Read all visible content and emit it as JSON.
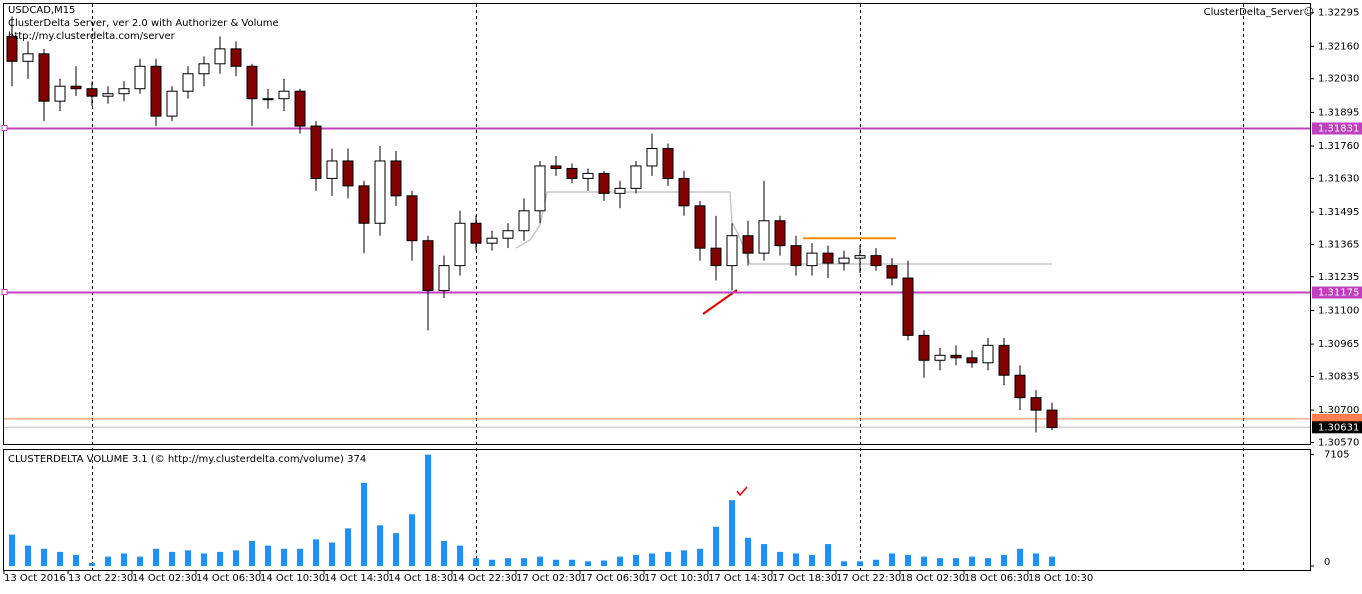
{
  "chart_data": [
    {
      "type": "candlestick",
      "title": "USDCAD,M15",
      "subtitle": "ClusterDelta Server, ver 2.0 with Authorizer & Volume",
      "source": "http://my.clusterdelta.com/server",
      "indicator_name": "ClusterDelta_Server☺",
      "categories": [
        "13 Oct 2016",
        null,
        null,
        null,
        "13 Oct 22:30",
        null,
        null,
        null,
        "14 Oct 02:30",
        null,
        null,
        null,
        "14 Oct 06:30",
        null,
        null,
        null,
        "14 Oct 10:30",
        null,
        null,
        null,
        "14 Oct 14:30",
        null,
        null,
        null,
        "14 Oct 18:30",
        null,
        null,
        null,
        "14 Oct 22:30",
        null,
        null,
        null,
        "17 Oct 02:30",
        null,
        null,
        null,
        "17 Oct 06:30",
        null,
        null,
        null,
        "17 Oct 10:30",
        null,
        null,
        null,
        "17 Oct 14:30",
        null,
        null,
        null,
        "17 Oct 18:30",
        null,
        null,
        null,
        "17 Oct 22:30",
        null,
        null,
        null,
        "18 Oct 02:30",
        null,
        null,
        null,
        "18 Oct 06:30",
        null,
        null,
        null,
        "18 Oct 10:30",
        null
      ],
      "open": [
        1.322,
        1.321,
        1.3213,
        1.3194,
        1.32,
        1.3199,
        1.3196,
        1.3197,
        1.3199,
        1.3208,
        1.3188,
        1.3198,
        1.3205,
        1.3209,
        1.3215,
        1.3208,
        1.3195,
        1.3195,
        1.3198,
        1.3184,
        1.3163,
        1.317,
        1.316,
        1.3145,
        1.317,
        1.3156,
        1.3138,
        1.3118,
        1.3128,
        1.3145,
        1.3137,
        1.3139,
        1.3142,
        1.315,
        1.3168,
        1.3167,
        1.3163,
        1.3165,
        1.3157,
        1.3159,
        1.3168,
        1.3175,
        1.3163,
        1.3152,
        1.3135,
        1.3128,
        1.314,
        1.3133,
        1.3146,
        1.3136,
        1.3128,
        1.3133,
        1.3129,
        1.3131,
        1.3132,
        1.3128,
        1.3123,
        1.31,
        1.309,
        1.3092,
        1.3091,
        1.3089,
        1.3096,
        1.3084,
        1.3075,
        1.307
      ],
      "high": [
        1.3228,
        1.3218,
        1.3215,
        1.3203,
        1.3208,
        1.3202,
        1.32,
        1.3202,
        1.3211,
        1.3211,
        1.32,
        1.3208,
        1.3212,
        1.322,
        1.3218,
        1.3209,
        1.3199,
        1.3203,
        1.3199,
        1.3186,
        1.3175,
        1.3175,
        1.3162,
        1.3176,
        1.3174,
        1.3158,
        1.314,
        1.3132,
        1.315,
        1.3148,
        1.3142,
        1.3145,
        1.3155,
        1.317,
        1.3172,
        1.3169,
        1.3167,
        1.3166,
        1.3162,
        1.317,
        1.3181,
        1.3177,
        1.3166,
        1.3154,
        1.3148,
        1.3145,
        1.3146,
        1.3162,
        1.3148,
        1.314,
        1.3137,
        1.3136,
        1.3134,
        1.3136,
        1.3135,
        1.3131,
        1.313,
        1.3102,
        1.3095,
        1.3096,
        1.3094,
        1.3099,
        1.3099,
        1.3088,
        1.3078,
        1.3073
      ],
      "low": [
        1.32,
        1.3203,
        1.3186,
        1.319,
        1.3196,
        1.3192,
        1.3193,
        1.3194,
        1.3197,
        1.3184,
        1.3186,
        1.3195,
        1.32,
        1.3205,
        1.3204,
        1.3184,
        1.3191,
        1.319,
        1.3181,
        1.3158,
        1.3156,
        1.3155,
        1.3133,
        1.314,
        1.3152,
        1.313,
        1.3102,
        1.3115,
        1.3124,
        1.3134,
        1.3134,
        1.3135,
        1.3138,
        1.3145,
        1.3164,
        1.3161,
        1.3158,
        1.3154,
        1.3151,
        1.3157,
        1.3164,
        1.316,
        1.3148,
        1.313,
        1.3122,
        1.3118,
        1.3128,
        1.313,
        1.3132,
        1.3124,
        1.3124,
        1.3123,
        1.3126,
        1.3125,
        1.3126,
        1.312,
        1.3098,
        1.3083,
        1.3086,
        1.3088,
        1.3087,
        1.3086,
        1.308,
        1.307,
        1.3061,
        1.3062
      ],
      "close": [
        1.321,
        1.3213,
        1.3194,
        1.32,
        1.3199,
        1.3196,
        1.3197,
        1.3199,
        1.3208,
        1.3188,
        1.3198,
        1.3205,
        1.3209,
        1.3215,
        1.3208,
        1.3195,
        1.3195,
        1.3198,
        1.3184,
        1.3163,
        1.317,
        1.316,
        1.3145,
        1.317,
        1.3156,
        1.3138,
        1.3118,
        1.3128,
        1.3145,
        1.3137,
        1.3139,
        1.3142,
        1.315,
        1.3168,
        1.3167,
        1.3163,
        1.3165,
        1.3157,
        1.3159,
        1.3168,
        1.3175,
        1.3163,
        1.3152,
        1.3135,
        1.3128,
        1.314,
        1.3133,
        1.3146,
        1.3136,
        1.3128,
        1.3133,
        1.3129,
        1.3131,
        1.3132,
        1.3128,
        1.3123,
        1.31,
        1.309,
        1.3092,
        1.3091,
        1.3089,
        1.3096,
        1.3084,
        1.3075,
        1.307,
        1.3063
      ],
      "up_color": "#ffffff",
      "down_color": "#800000",
      "wick_color": "#000000",
      "ylim": [
        1.3056,
        1.3233
      ],
      "yticks": [
        {
          "value": 1.32295,
          "label": "1.32295"
        },
        {
          "value": 1.3216,
          "label": "1.32160"
        },
        {
          "value": 1.3203,
          "label": "1.32030"
        },
        1.31895,
        {
          "value": 1.3176,
          "label": "1.31760"
        },
        {
          "value": 1.3163,
          "label": "1.31630"
        },
        1.31495,
        1.31365,
        1.31235,
        {
          "value": 1.311,
          "label": "1.31100"
        },
        1.30965,
        1.30835,
        {
          "value": 1.307,
          "label": "1.30700"
        },
        {
          "value": 1.3057,
          "label": "1.30570"
        }
      ],
      "levels": [
        1.31831,
        1.31175
      ],
      "level_color": "#c040c0",
      "resistance": 1.3139,
      "resistance_color": "#ff8c00",
      "ask": 1.30665,
      "ask_color": "#ff7f50",
      "bid": 1.30631
    },
    {
      "type": "bar",
      "title": "CLUSTERDELTA VOLUME 3.1 (© http://my.clusterdelta.com/volume) 374",
      "values": [
        2000,
        1300,
        1100,
        900,
        700,
        200,
        600,
        800,
        600,
        1100,
        900,
        1000,
        800,
        900,
        1000,
        1600,
        1300,
        1100,
        1100,
        1700,
        1500,
        2400,
        5300,
        2600,
        2100,
        3300,
        7105,
        1600,
        1300,
        500,
        400,
        500,
        500,
        600,
        400,
        400,
        300,
        350,
        600,
        700,
        800,
        900,
        1000,
        1100,
        2500,
        4200,
        1800,
        1400,
        900,
        800,
        700,
        1400,
        300,
        300,
        400,
        800,
        700,
        600,
        500,
        500,
        600,
        500,
        700,
        1100,
        800,
        600
      ],
      "color": "#1e90ff",
      "ylim": [
        0,
        7400
      ],
      "yticks": [
        0,
        7105
      ]
    }
  ]
}
